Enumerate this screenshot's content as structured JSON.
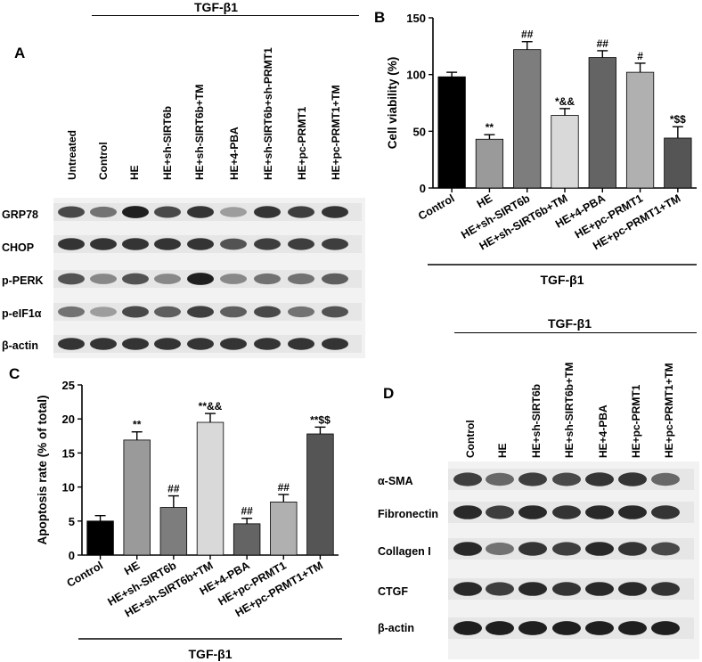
{
  "panels": {
    "a": "A",
    "b": "B",
    "c": "C",
    "d": "D"
  },
  "treatment_header": "TGF-β1",
  "blot_a": {
    "lanes": [
      "Untreated",
      "Control",
      "HE",
      "HE+sh-SIRT6b",
      "HE+sh-SIRT6b+TM",
      "HE+4-PBA",
      "HE+sh-SIRT6b+sh-PRMT1",
      "HE+pc-PRMT1",
      "HE+pc-PRMT1+TM"
    ],
    "proteins": [
      "GRP78",
      "CHOP",
      "p-PERK",
      "p-eIF1α",
      "β-actin"
    ]
  },
  "blot_d": {
    "lanes": [
      "Control",
      "HE",
      "HE+sh-SIRT6b",
      "HE+sh-SIRT6b+TM",
      "HE+4-PBA",
      "HE+pc-PRMT1",
      "HE+pc-PRMT1+TM"
    ],
    "proteins": [
      "α-SMA",
      "Fibronectin",
      "Collagen I",
      "CTGF",
      "β-actin"
    ]
  },
  "colors": {
    "black": "#000000",
    "he": "#9a9a9a",
    "sirt6b": "#7d7d7d",
    "sirt6b_tm": "#d9d9d9",
    "pba": "#646464",
    "pc_prmt1": "#b0b0b0",
    "pc_prmt1_tm": "#555555"
  },
  "chart_data": [
    {
      "type": "bar",
      "panel": "B",
      "ylabel": "Cell viability (%)",
      "xlabel": "TGF-β1",
      "ylim": [
        0,
        150
      ],
      "yticks": [
        "0",
        "50",
        "100",
        "150"
      ],
      "categories": [
        "Control",
        "HE",
        "HE+sh-SIRT6b",
        "HE+sh-SIRT6b+TM",
        "HE+4-PBA",
        "HE+pc-PRMT1",
        "HE+pc-PRMT1+TM"
      ],
      "values": [
        98,
        43,
        122,
        64,
        115,
        102,
        44
      ],
      "errors": [
        4,
        4,
        7,
        6,
        6,
        8,
        10
      ],
      "annotations": [
        "",
        "**",
        "##",
        "*&&",
        "##",
        "#",
        "*$$"
      ]
    },
    {
      "type": "bar",
      "panel": "C",
      "ylabel": "Apoptosis rate (% of total)",
      "xlabel": "TGF-β1",
      "ylim": [
        0,
        25
      ],
      "yticks": [
        "0",
        "5",
        "10",
        "15",
        "20",
        "25"
      ],
      "categories": [
        "Control",
        "HE",
        "HE+sh-SIRT6b",
        "HE+sh-SIRT6b+TM",
        "HE+4-PBA",
        "HE+pc-PRMT1",
        "HE+pc-PRMT1+TM"
      ],
      "values": [
        5.0,
        16.9,
        7.0,
        19.5,
        4.6,
        7.8,
        17.8
      ],
      "errors": [
        0.8,
        1.2,
        1.7,
        1.3,
        0.8,
        1.1,
        1.0
      ],
      "annotations": [
        "",
        "**",
        "##",
        "**&&",
        "##",
        "##",
        "**$$"
      ]
    }
  ]
}
